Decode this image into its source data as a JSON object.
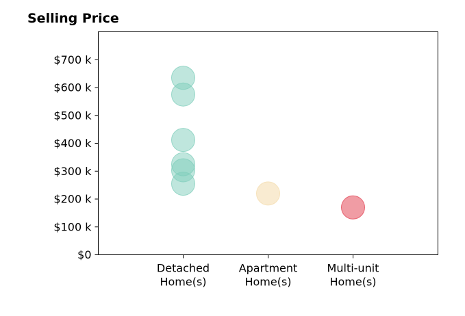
{
  "chart_data": {
    "type": "scatter",
    "title": "Selling Price",
    "xlabel": "",
    "ylabel": "",
    "categories": [
      [
        "Detached",
        "Home(s)"
      ],
      [
        "Apartment",
        "Home(s)"
      ],
      [
        "Multi-unit",
        "Home(s)"
      ]
    ],
    "xlim": [
      -1,
      3
    ],
    "ylim": [
      0,
      800
    ],
    "y_ticks": [
      0,
      100,
      200,
      300,
      400,
      500,
      600,
      700
    ],
    "y_tick_labels": [
      "$0",
      "$100 k",
      "$200 k",
      "$300 k",
      "$400 k",
      "$500 k",
      "$600 k",
      "$700 k"
    ],
    "grid": false,
    "legend": "none",
    "series": [
      {
        "category_index": 0,
        "color": "#7fcdbb",
        "opacity": 0.5,
        "values": [
          635,
          575,
          412,
          325,
          303,
          255
        ]
      },
      {
        "category_index": 1,
        "color": "#f5deb3",
        "opacity": 0.6,
        "values": [
          220
        ]
      },
      {
        "category_index": 2,
        "color": "#e34a5a",
        "opacity": 0.55,
        "values": [
          170
        ]
      }
    ]
  }
}
